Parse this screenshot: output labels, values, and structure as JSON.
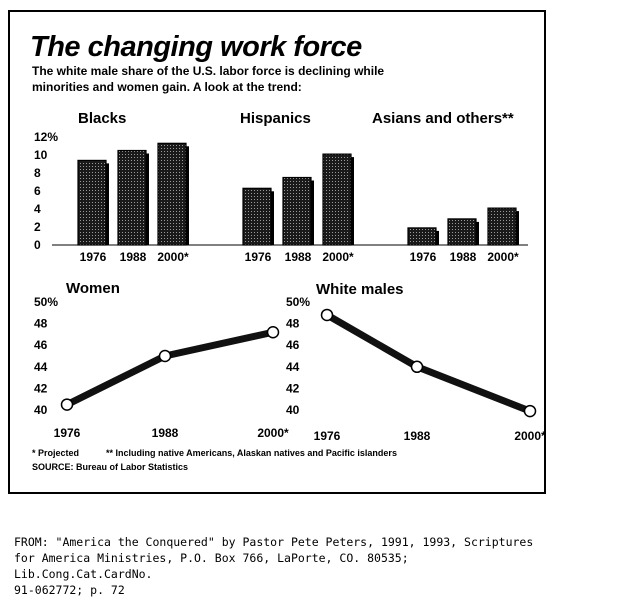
{
  "chart_data": {
    "title": "The changing work force",
    "subtitle": [
      "The white male share of the U.S. labor force is declining while",
      "minorities and women gain. A look at the trend:"
    ],
    "bar_panels": {
      "type": "bar",
      "y_ticks": [
        "12%",
        "10",
        "8",
        "6",
        "4",
        "2",
        "0"
      ],
      "ylim": [
        0,
        12
      ],
      "groups": [
        {
          "name": "Blacks",
          "categories": [
            "1976",
            "1988",
            "2000*"
          ],
          "values": [
            9.4,
            10.5,
            11.3
          ]
        },
        {
          "name": "Hispanics",
          "categories": [
            "1976",
            "1988",
            "2000*"
          ],
          "values": [
            6.3,
            7.5,
            10.1
          ]
        },
        {
          "name": "Asians and others**",
          "categories": [
            "1976",
            "1988",
            "2000*"
          ],
          "values": [
            1.9,
            2.9,
            4.1
          ]
        }
      ]
    },
    "line_panels": [
      {
        "type": "line",
        "name": "Women",
        "x": [
          "1976",
          "1988",
          "2000*"
        ],
        "values": [
          40.5,
          45.0,
          47.2
        ],
        "y_ticks": [
          "50%",
          "48",
          "46",
          "44",
          "42",
          "40"
        ],
        "ylim": [
          40,
          50
        ]
      },
      {
        "type": "line",
        "name": "White males",
        "x": [
          "1976",
          "1988",
          "2000*"
        ],
        "values": [
          48.8,
          44.0,
          39.9
        ],
        "y_ticks": [
          "50%",
          "48",
          "46",
          "44",
          "42",
          "40"
        ],
        "ylim": [
          40,
          50
        ]
      }
    ],
    "footnotes": {
      "projected": "* Projected",
      "including": "** Including native Americans, Alaskan natives and Pacific islanders",
      "source": "SOURCE: Bureau of Labor Statistics"
    }
  },
  "caption": "FROM:  \"America the Conquered\" by Pastor Pete Peters, 1991, 1993, Scriptures\nfor America Ministries, P.O. Box 766, LaPorte, CO. 80535; Lib.Cong.Cat.CardNo.\n91-062772; p. 72"
}
